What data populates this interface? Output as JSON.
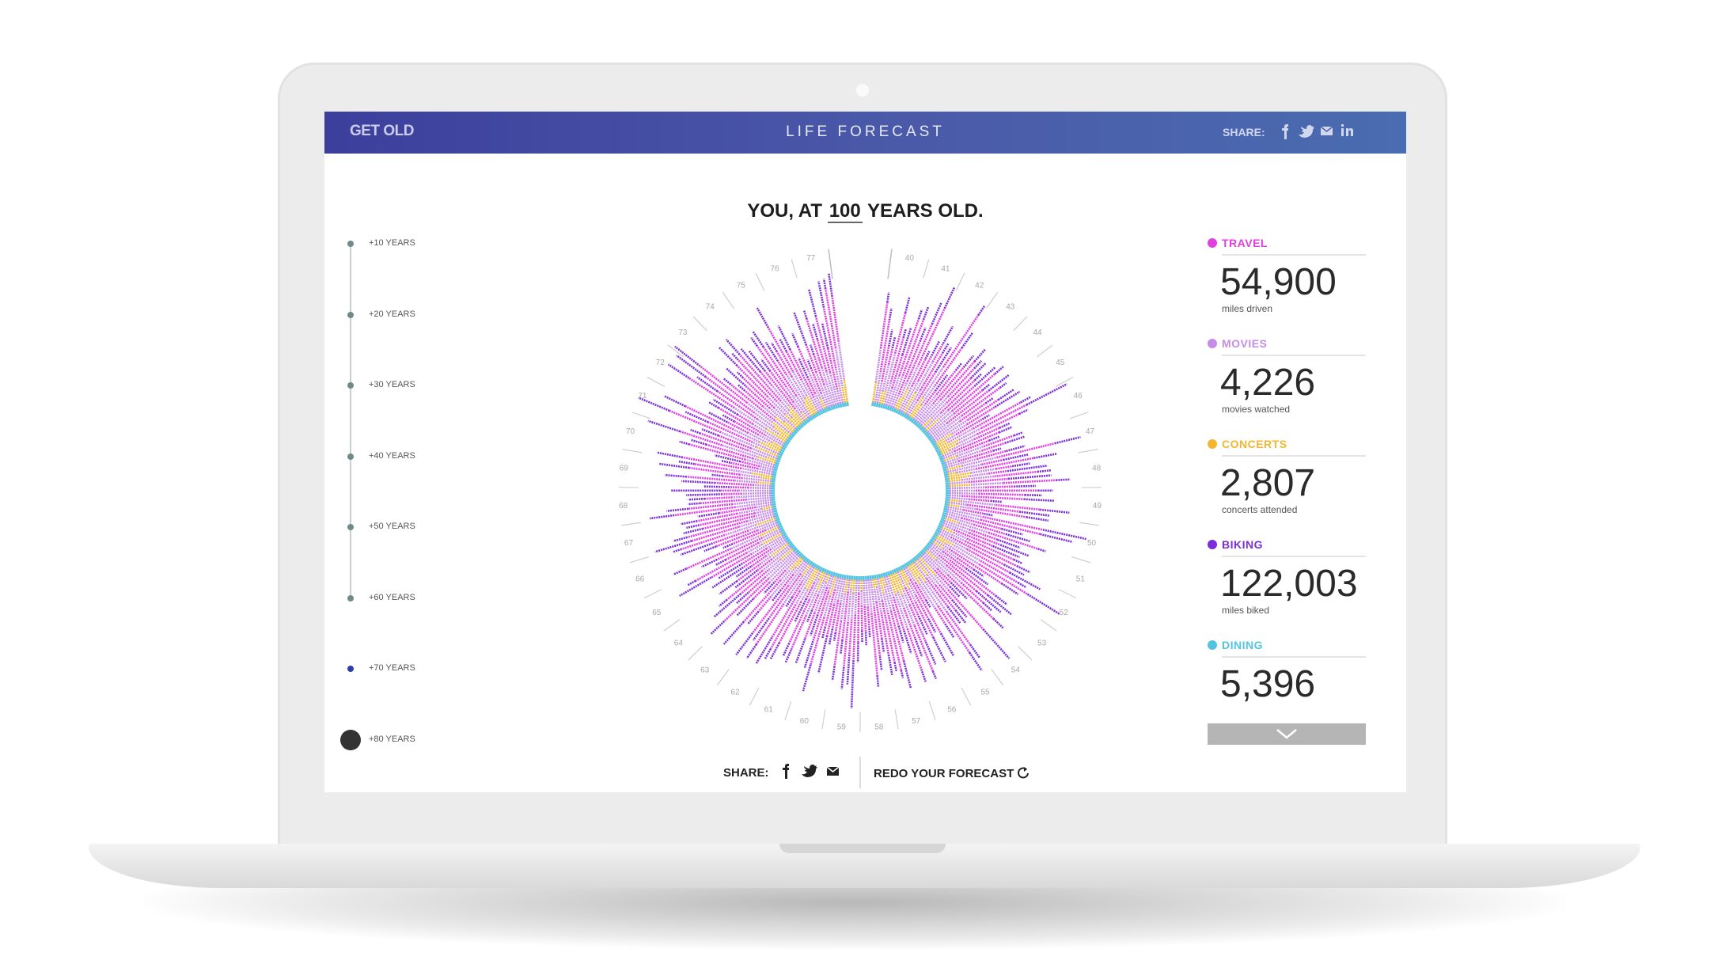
{
  "header": {
    "logo": "GET OLD",
    "title": "LIFE FORECAST",
    "share_label": "SHARE:"
  },
  "headline": {
    "prefix": "YOU, AT",
    "age": "100",
    "suffix": "YEARS OLD."
  },
  "timeline": [
    "+10 YEARS",
    "+20 YEARS",
    "+30 YEARS",
    "+40 YEARS",
    "+50 YEARS",
    "+60 YEARS",
    "+70 YEARS",
    "+80 YEARS"
  ],
  "chart": {
    "age_labels": [
      40,
      41,
      42,
      43,
      44,
      45,
      46,
      47,
      48,
      49,
      50,
      51,
      52,
      53,
      54,
      55,
      56,
      57,
      58,
      59,
      60,
      61,
      62,
      63,
      64,
      65,
      66,
      67,
      68,
      69,
      70,
      71,
      72,
      73,
      74,
      75,
      76,
      77
    ]
  },
  "stats": [
    {
      "label": "TRAVEL",
      "color": "#e23fe0",
      "value": "54,900",
      "caption": "miles driven"
    },
    {
      "label": "MOVIES",
      "color": "#c58ce8",
      "value": "4,226",
      "caption": "movies watched"
    },
    {
      "label": "CONCERTS",
      "color": "#f3b630",
      "value": "2,807",
      "caption": "concerts attended"
    },
    {
      "label": "BIKING",
      "color": "#7a30d8",
      "value": "122,003",
      "caption": "miles biked"
    },
    {
      "label": "DINING",
      "color": "#52c4e2",
      "value": "5,396"
    }
  ],
  "footer": {
    "share_label": "SHARE:",
    "redo": "REDO YOUR FORECAST"
  }
}
